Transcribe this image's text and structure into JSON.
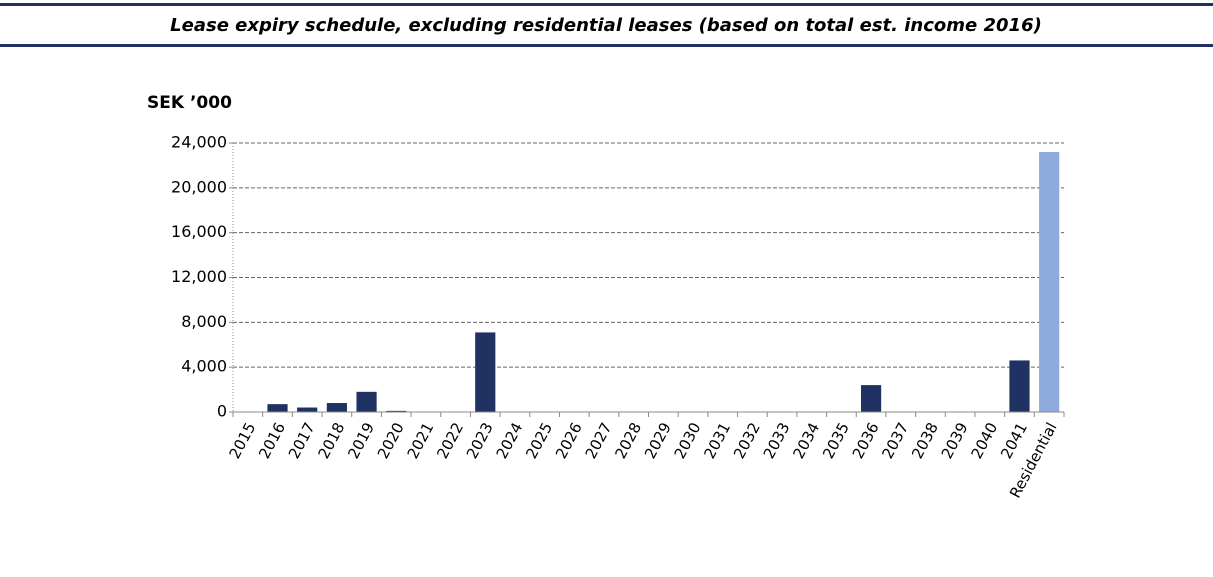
{
  "chart_data": {
    "type": "bar",
    "title": "Lease expiry schedule, excluding residential leases (based on total est. income 2016)",
    "y_label": "SEK ’000",
    "categories": [
      "2015",
      "2016",
      "2017",
      "2018",
      "2019",
      "2020",
      "2021",
      "2022",
      "2023",
      "2024",
      "2025",
      "2026",
      "2027",
      "2028",
      "2029",
      "2030",
      "2031",
      "2032",
      "2033",
      "2034",
      "2035",
      "2036",
      "2037",
      "2038",
      "2039",
      "2040",
      "2041",
      "Residential"
    ],
    "values": [
      0,
      700,
      400,
      800,
      1800,
      100,
      0,
      0,
      7100,
      0,
      0,
      0,
      0,
      0,
      0,
      0,
      0,
      0,
      0,
      0,
      0,
      2400,
      0,
      0,
      0,
      0,
      4600,
      23200
    ],
    "colors": [
      "#1f3262",
      "#1f3262",
      "#1f3262",
      "#1f3262",
      "#1f3262",
      "#1f3262",
      "#1f3262",
      "#1f3262",
      "#1f3262",
      "#1f3262",
      "#1f3262",
      "#1f3262",
      "#1f3262",
      "#1f3262",
      "#1f3262",
      "#1f3262",
      "#1f3262",
      "#1f3262",
      "#1f3262",
      "#1f3262",
      "#1f3262",
      "#1f3262",
      "#1f3262",
      "#1f3262",
      "#1f3262",
      "#1f3262",
      "#1f3262",
      "#8faadc"
    ],
    "ylim": [
      0,
      24000
    ],
    "yticks": [
      0,
      {
        "value": 4000,
        "label": "4,000"
      },
      {
        "value": 8000,
        "label": "8,000"
      },
      {
        "value": 12000,
        "label": "12,000"
      },
      {
        "value": 16000,
        "label": "16,000"
      },
      {
        "value": 20000,
        "label": "20,000"
      },
      {
        "value": 24000,
        "label": "24,000"
      }
    ],
    "grid": true
  }
}
